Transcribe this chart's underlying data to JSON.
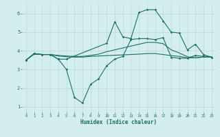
{
  "xlabel": "Humidex (Indice chaleur)",
  "bg_color": "#d4eeee",
  "grid_color": "#b8d8d8",
  "line_color": "#1a6e64",
  "xlim": [
    -0.5,
    23.5
  ],
  "ylim": [
    0.7,
    6.5
  ],
  "yticks": [
    1,
    2,
    3,
    4,
    5,
    6
  ],
  "xticks": [
    0,
    1,
    2,
    3,
    4,
    5,
    6,
    7,
    8,
    9,
    10,
    11,
    12,
    13,
    14,
    15,
    16,
    17,
    18,
    19,
    20,
    21,
    22,
    23
  ],
  "series": [
    {
      "x": [
        0,
        1,
        2,
        3,
        4,
        5,
        6,
        7,
        8,
        9,
        10,
        11,
        12,
        13,
        14,
        15,
        16,
        17,
        18,
        19,
        20,
        21,
        22,
        23
      ],
      "y": [
        3.5,
        3.85,
        3.8,
        3.8,
        3.55,
        3.0,
        1.5,
        1.2,
        2.2,
        2.5,
        3.2,
        3.55,
        3.7,
        4.6,
        4.65,
        4.65,
        4.6,
        4.7,
        3.65,
        3.6,
        3.6,
        3.75,
        3.7,
        3.65
      ],
      "marker": true,
      "linewidth": 0.8
    },
    {
      "x": [
        0,
        1,
        2,
        3,
        4,
        5,
        10,
        11,
        12,
        13,
        14,
        15,
        16,
        17,
        18,
        19,
        20,
        21,
        22,
        23
      ],
      "y": [
        3.5,
        3.85,
        3.8,
        3.8,
        3.55,
        3.55,
        4.4,
        5.55,
        4.75,
        4.65,
        6.05,
        6.2,
        6.2,
        5.6,
        5.0,
        4.95,
        4.05,
        4.35,
        3.8,
        3.65
      ],
      "marker": true,
      "linewidth": 0.8
    },
    {
      "x": [
        0,
        1,
        2,
        3,
        4,
        5,
        6,
        7,
        8,
        9,
        10,
        11,
        12,
        13,
        14,
        15,
        16,
        17,
        18,
        19,
        20,
        21,
        22,
        23
      ],
      "y": [
        3.5,
        3.82,
        3.8,
        3.8,
        3.75,
        3.72,
        3.7,
        3.7,
        3.75,
        3.82,
        3.95,
        4.05,
        4.15,
        4.25,
        4.35,
        4.45,
        4.45,
        4.38,
        4.05,
        3.88,
        3.68,
        3.62,
        3.67,
        3.67
      ],
      "marker": false,
      "linewidth": 0.8
    },
    {
      "x": [
        0,
        1,
        2,
        3,
        4,
        5,
        6,
        7,
        8,
        9,
        10,
        11,
        12,
        13,
        14,
        15,
        16,
        17,
        18,
        19,
        20,
        21,
        22,
        23
      ],
      "y": [
        3.5,
        3.82,
        3.8,
        3.8,
        3.72,
        3.68,
        3.66,
        3.66,
        3.7,
        3.72,
        3.74,
        3.76,
        3.78,
        3.8,
        3.82,
        3.85,
        3.85,
        3.8,
        3.74,
        3.7,
        3.62,
        3.62,
        3.67,
        3.67
      ],
      "marker": false,
      "linewidth": 0.8
    }
  ]
}
